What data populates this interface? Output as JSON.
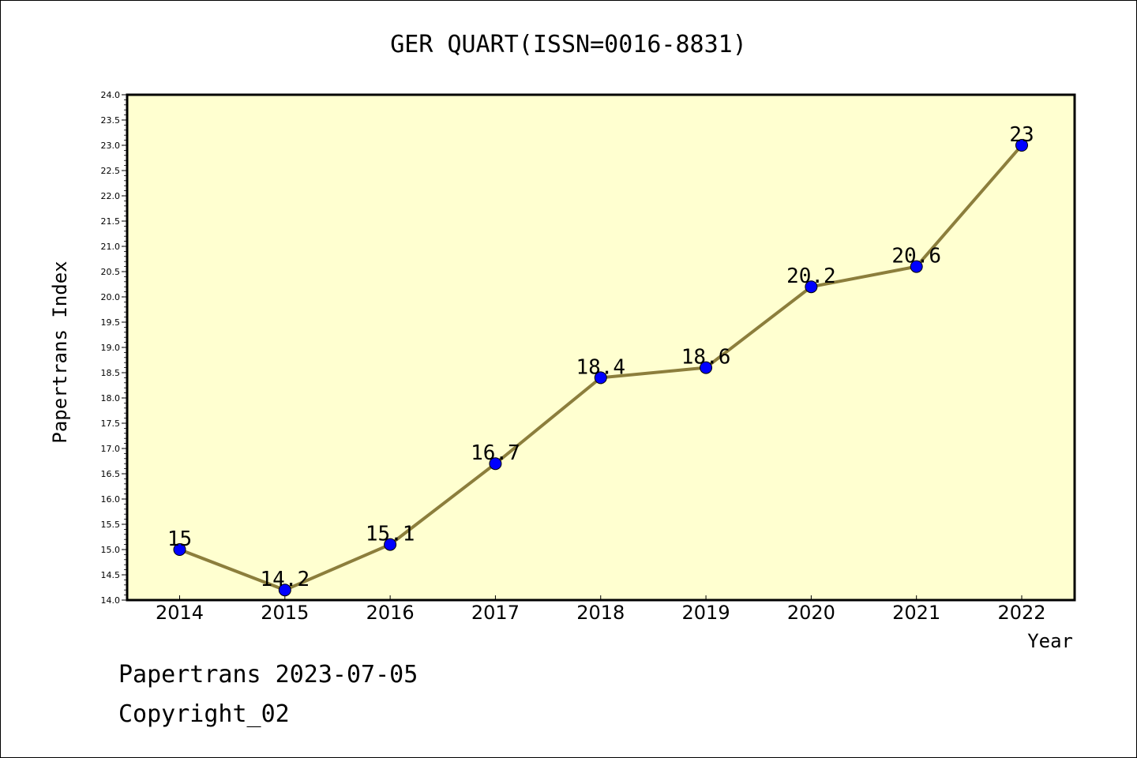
{
  "chart_data": {
    "type": "line",
    "title": "GER QUART(ISSN=0016-8831)",
    "xlabel": "Year",
    "ylabel": "Papertrans Index",
    "categories": [
      "2014",
      "2015",
      "2016",
      "2017",
      "2018",
      "2019",
      "2020",
      "2021",
      "2022"
    ],
    "values": [
      15,
      14.2,
      15.1,
      16.7,
      18.4,
      18.6,
      20.2,
      20.6,
      23
    ],
    "data_labels": [
      "15",
      "14.2",
      "15.1",
      "16.7",
      "18.4",
      "18.6",
      "20.2",
      "20.6",
      "23"
    ],
    "ylim": [
      14.0,
      24.0
    ],
    "y_ticks": [
      "14.0",
      "14.5",
      "15.0",
      "15.5",
      "16.0",
      "16.5",
      "17.0",
      "17.5",
      "18.0",
      "18.5",
      "19.0",
      "19.5",
      "20.0",
      "20.5",
      "21.0",
      "21.5",
      "22.0",
      "22.5",
      "23.0",
      "23.5",
      "24.0"
    ],
    "grid": false,
    "colors": {
      "plot_background": "#ffffd0",
      "line": "#8c7e3c",
      "marker": "#0000ff"
    }
  },
  "footer": {
    "line1": "Papertrans 2023-07-05",
    "line2": "Copyright_02"
  }
}
